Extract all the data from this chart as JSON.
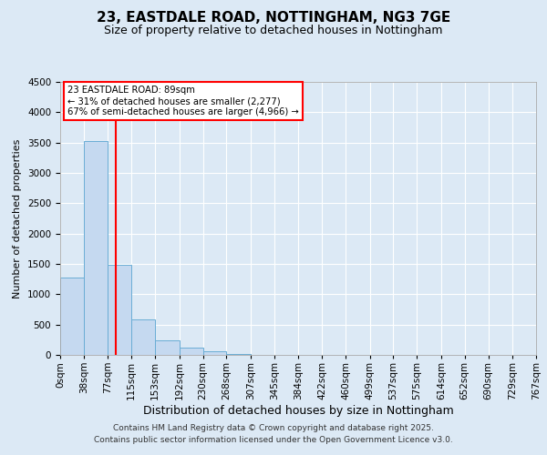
{
  "title": "23, EASTDALE ROAD, NOTTINGHAM, NG3 7GE",
  "subtitle": "Size of property relative to detached houses in Nottingham",
  "xlabel": "Distribution of detached houses by size in Nottingham",
  "ylabel": "Number of detached properties",
  "bin_edges": [
    0,
    38,
    77,
    115,
    153,
    192,
    230,
    268,
    307,
    345,
    384,
    422,
    460,
    499,
    537,
    575,
    614,
    652,
    690,
    729,
    767
  ],
  "bin_labels": [
    "0sqm",
    "38sqm",
    "77sqm",
    "115sqm",
    "153sqm",
    "192sqm",
    "230sqm",
    "268sqm",
    "307sqm",
    "345sqm",
    "384sqm",
    "422sqm",
    "460sqm",
    "499sqm",
    "537sqm",
    "575sqm",
    "614sqm",
    "652sqm",
    "690sqm",
    "729sqm",
    "767sqm"
  ],
  "counts": [
    1280,
    3530,
    1490,
    590,
    240,
    125,
    65,
    20,
    5,
    2,
    1,
    0,
    0,
    0,
    0,
    0,
    0,
    0,
    0,
    0
  ],
  "bar_color": "#c5d9f0",
  "bar_edge_color": "#6aadd5",
  "vline_x": 89,
  "vline_color": "red",
  "annotation_title": "23 EASTDALE ROAD: 89sqm",
  "annotation_line1": "← 31% of detached houses are smaller (2,277)",
  "annotation_line2": "67% of semi-detached houses are larger (4,966) →",
  "annotation_box_color": "white",
  "annotation_box_edge": "red",
  "ylim": [
    0,
    4500
  ],
  "yticks": [
    0,
    500,
    1000,
    1500,
    2000,
    2500,
    3000,
    3500,
    4000,
    4500
  ],
  "background_color": "#dce9f5",
  "plot_background": "#dce9f5",
  "grid_color": "white",
  "footer1": "Contains HM Land Registry data © Crown copyright and database right 2025.",
  "footer2": "Contains public sector information licensed under the Open Government Licence v3.0.",
  "title_fontsize": 11,
  "subtitle_fontsize": 9,
  "xlabel_fontsize": 9,
  "ylabel_fontsize": 8,
  "tick_fontsize": 7.5,
  "footer_fontsize": 6.5
}
